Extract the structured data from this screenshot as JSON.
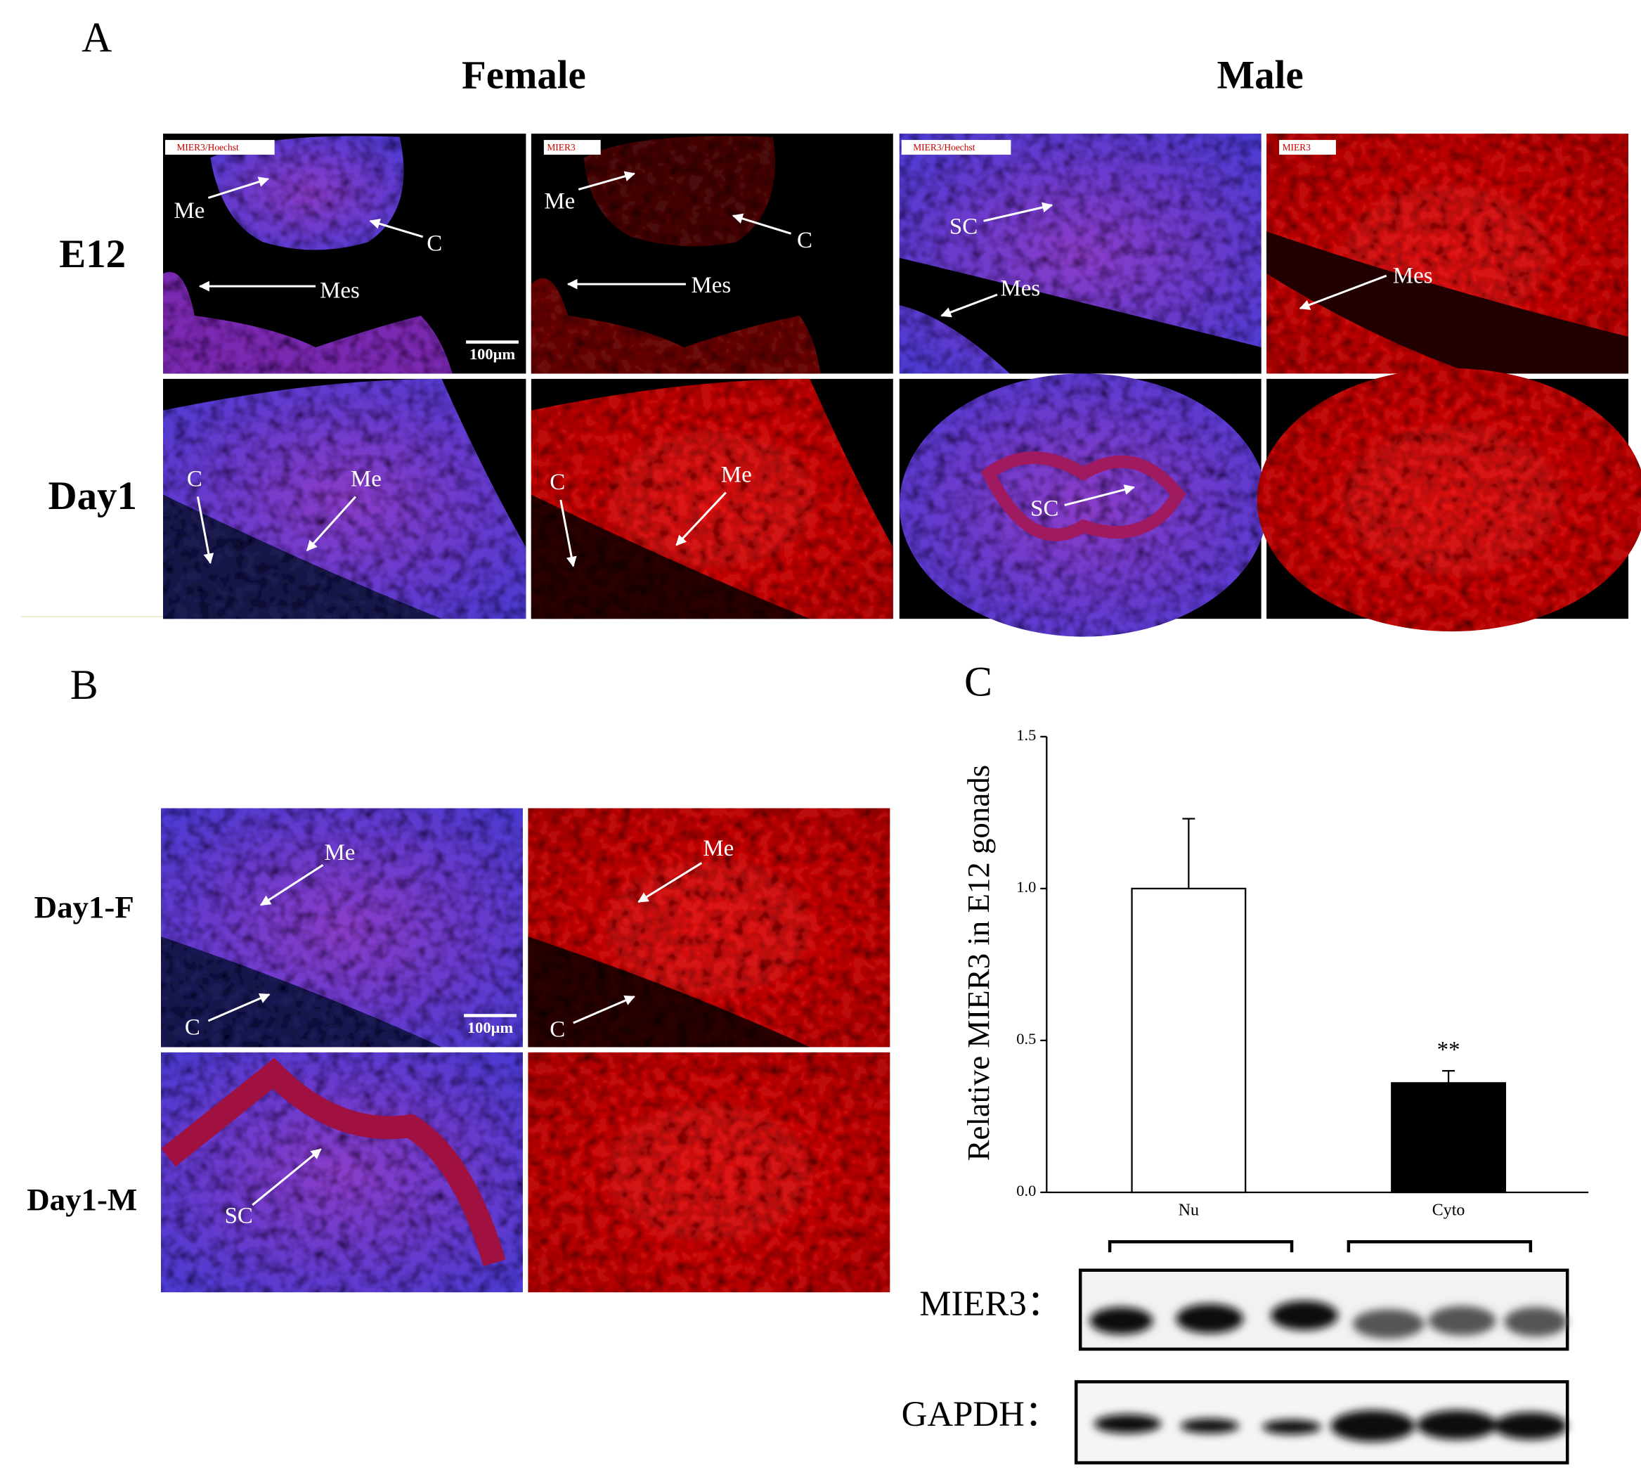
{
  "panel_a": {
    "label": "A",
    "columns": [
      "Female",
      "Male"
    ],
    "rows": [
      "E12",
      "Day1"
    ],
    "channel_tags": [
      "MIER3/Hoechst",
      "MIER3",
      "MIER3/Hoechst",
      "MIER3"
    ],
    "scale_bar": "100μm",
    "annotations": [
      "Me",
      "C",
      "Mes",
      "Me",
      "C",
      "Mes",
      "SC",
      "Mes",
      "Mes",
      "C",
      "Me",
      "C",
      "Me",
      "SC"
    ]
  },
  "panel_b": {
    "label": "B",
    "rows": [
      "Day1-F",
      "Day1-M"
    ],
    "scale_bar": "100μm",
    "annotations": [
      "Me",
      "C",
      "Me",
      "C",
      "SC"
    ]
  },
  "panel_c": {
    "label": "C",
    "blot_labels": [
      "MIER3：",
      "GAPDH："
    ]
  },
  "chart_data": {
    "type": "bar",
    "ylabel": "Relative MIER3 in E12 gonads",
    "categories": [
      "Nu",
      "Cyto"
    ],
    "values": [
      1.0,
      0.36
    ],
    "errors": [
      0.23,
      0.04
    ],
    "significance": [
      null,
      "**"
    ],
    "colors": [
      "#ffffff",
      "#000000"
    ],
    "ylim": [
      0,
      1.5
    ],
    "yticks": [
      {
        "value": 0,
        "label": "0.0"
      },
      {
        "value": 0.5,
        "label": "0.5"
      },
      {
        "value": 1,
        "label": "1.0"
      },
      {
        "value": 1.5,
        "label": "1.5"
      }
    ]
  }
}
